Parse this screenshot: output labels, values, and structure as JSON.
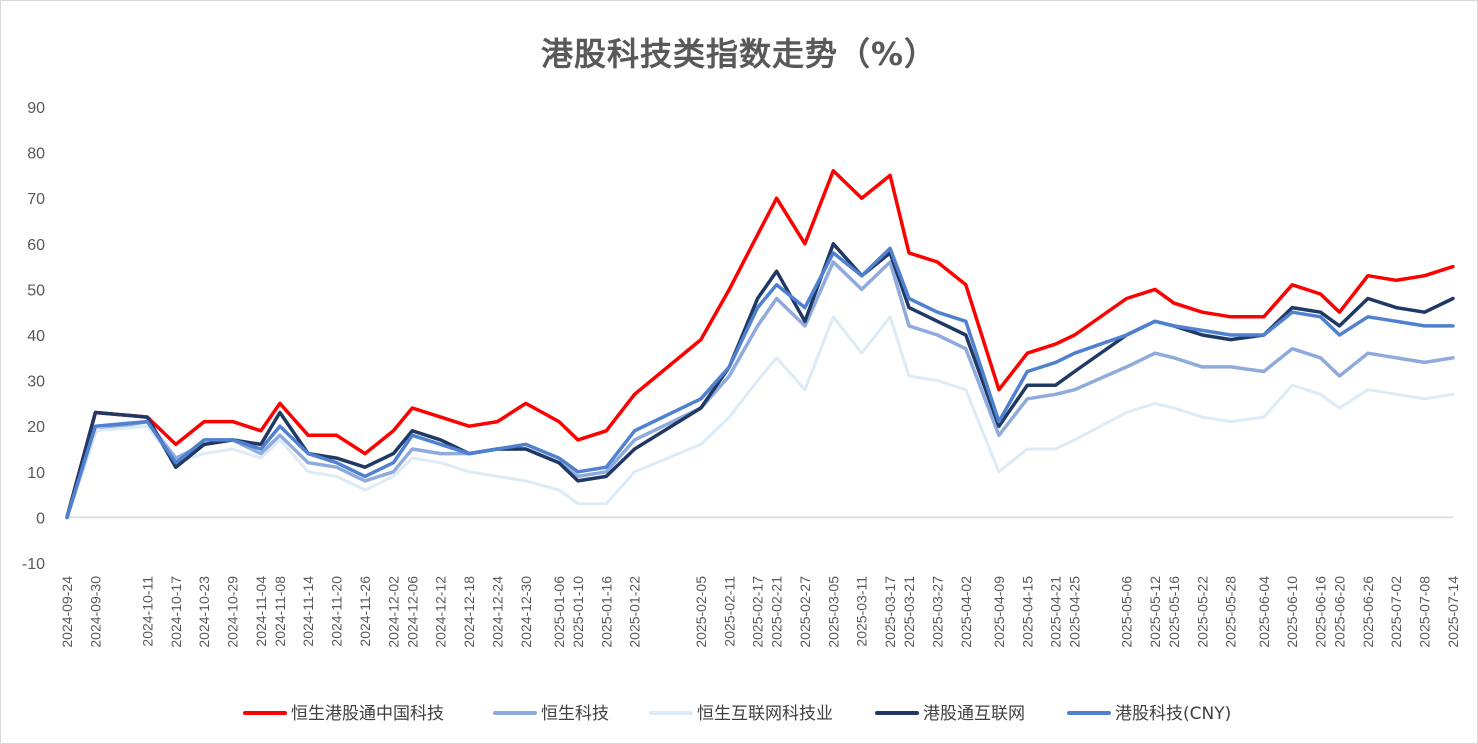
{
  "chart_data": {
    "type": "line",
    "title": "港股科技类指数走势（%）",
    "ylim": [
      -10,
      90
    ],
    "yticks": [
      -10,
      0,
      10,
      20,
      30,
      40,
      50,
      60,
      70,
      80,
      90
    ],
    "grid": "zero-line only",
    "legend_position": "bottom",
    "x_start": "2024-09-24",
    "x_end": "2025-07-14",
    "x_tick_labels": [
      "2024-09-24",
      "2024-09-30",
      "2024-10-11",
      "2024-10-17",
      "2024-10-23",
      "2024-10-29",
      "2024-11-04",
      "2024-11-08",
      "2024-11-14",
      "2024-11-20",
      "2024-11-26",
      "2024-12-02",
      "2024-12-06",
      "2024-12-12",
      "2024-12-18",
      "2024-12-24",
      "2024-12-30",
      "2025-01-06",
      "2025-01-10",
      "2025-01-16",
      "2025-01-22",
      "2025-02-05",
      "2025-02-11",
      "2025-02-17",
      "2025-02-21",
      "2025-02-27",
      "2025-03-05",
      "2025-03-11",
      "2025-03-17",
      "2025-03-21",
      "2025-03-27",
      "2025-04-02",
      "2025-04-09",
      "2025-04-15",
      "2025-04-21",
      "2025-04-25",
      "2025-05-06",
      "2025-05-12",
      "2025-05-16",
      "2025-05-22",
      "2025-05-28",
      "2025-06-04",
      "2025-06-10",
      "2025-06-16",
      "2025-06-20",
      "2025-06-26",
      "2025-07-02",
      "2025-07-08",
      "2025-07-14"
    ],
    "x": [
      "2024-09-24",
      "2024-09-30",
      "2024-10-11",
      "2024-10-17",
      "2024-10-23",
      "2024-10-29",
      "2024-11-04",
      "2024-11-08",
      "2024-11-14",
      "2024-11-20",
      "2024-11-26",
      "2024-12-02",
      "2024-12-06",
      "2024-12-12",
      "2024-12-18",
      "2024-12-24",
      "2024-12-30",
      "2025-01-06",
      "2025-01-10",
      "2025-01-16",
      "2025-01-22",
      "2025-02-05",
      "2025-02-11",
      "2025-02-17",
      "2025-02-21",
      "2025-02-27",
      "2025-03-05",
      "2025-03-11",
      "2025-03-17",
      "2025-03-21",
      "2025-03-27",
      "2025-04-02",
      "2025-04-09",
      "2025-04-15",
      "2025-04-21",
      "2025-04-25",
      "2025-05-06",
      "2025-05-12",
      "2025-05-16",
      "2025-05-22",
      "2025-05-28",
      "2025-06-04",
      "2025-06-10",
      "2025-06-16",
      "2025-06-20",
      "2025-06-26",
      "2025-07-02",
      "2025-07-08",
      "2025-07-14"
    ],
    "series": [
      {
        "name": "恒生港股通中国科技",
        "color": "#ff0000",
        "width": 3.5,
        "values": [
          0,
          23,
          22,
          16,
          21,
          21,
          19,
          25,
          18,
          18,
          14,
          19,
          24,
          22,
          20,
          21,
          25,
          21,
          17,
          19,
          27,
          39,
          50,
          62,
          70,
          60,
          76,
          70,
          75,
          58,
          56,
          51,
          28,
          36,
          38,
          40,
          48,
          50,
          47,
          45,
          44,
          44,
          51,
          49,
          45,
          53,
          52,
          53,
          55
        ]
      },
      {
        "name": "恒生科技",
        "color": "#8faadc",
        "width": 3.5,
        "values": [
          0,
          19,
          21,
          13,
          16,
          17,
          14,
          18,
          12,
          11,
          8,
          10,
          15,
          14,
          14,
          15,
          15,
          12,
          9,
          10,
          17,
          24,
          31,
          42,
          48,
          42,
          56,
          50,
          56,
          42,
          40,
          37,
          18,
          26,
          27,
          28,
          33,
          36,
          35,
          33,
          33,
          32,
          37,
          35,
          31,
          36,
          35,
          34,
          35
        ]
      },
      {
        "name": "恒生互联网科技业",
        "color": "#ddebf7",
        "width": 3,
        "values": [
          0,
          19,
          20,
          12,
          14,
          15,
          13,
          17,
          10,
          9,
          6,
          9,
          13,
          12,
          10,
          9,
          8,
          6,
          3,
          3,
          10,
          16,
          22,
          30,
          35,
          28,
          44,
          36,
          44,
          31,
          30,
          28,
          10,
          15,
          15,
          17,
          23,
          25,
          24,
          22,
          21,
          22,
          29,
          27,
          24,
          28,
          27,
          26,
          27
        ]
      },
      {
        "name": "港股通互联网",
        "color": "#203864",
        "width": 3.5,
        "values": [
          0,
          23,
          22,
          11,
          16,
          17,
          16,
          23,
          14,
          13,
          11,
          14,
          19,
          17,
          14,
          15,
          15,
          12,
          8,
          9,
          15,
          24,
          33,
          48,
          54,
          43,
          60,
          53,
          58,
          46,
          43,
          40,
          20,
          29,
          29,
          32,
          40,
          43,
          42,
          40,
          39,
          40,
          46,
          45,
          42,
          48,
          46,
          45,
          48
        ]
      },
      {
        "name": "港股科技(CNY)",
        "color": "#4f81d0",
        "width": 3.5,
        "values": [
          0,
          20,
          21,
          12,
          17,
          17,
          15,
          20,
          14,
          12,
          9,
          12,
          18,
          16,
          14,
          15,
          16,
          13,
          10,
          11,
          19,
          26,
          33,
          46,
          51,
          46,
          58,
          53,
          59,
          48,
          45,
          43,
          21,
          32,
          34,
          36,
          40,
          43,
          42,
          41,
          40,
          40,
          45,
          44,
          40,
          44,
          43,
          42,
          42
        ]
      }
    ]
  }
}
